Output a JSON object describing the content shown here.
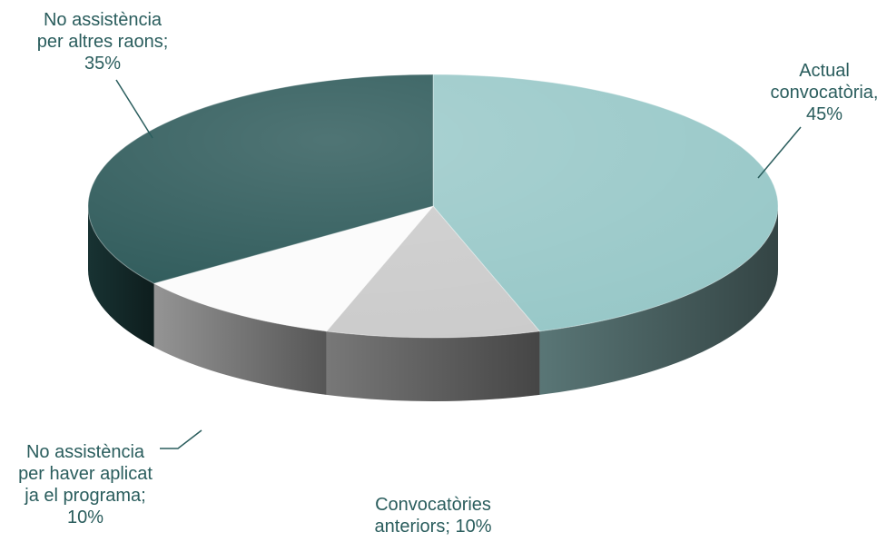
{
  "chart_data": {
    "type": "pie",
    "variant": "3d-pie",
    "title": "",
    "slices": [
      {
        "label": "Actual\nconvocatòria,\n45%",
        "value": 45,
        "color": "#98c8c8"
      },
      {
        "label": "Convocatòries\nanteriors; 10%",
        "value": 10,
        "color": "#cbcbcb"
      },
      {
        "label": "No assistència\nper haver aplicat\nja el programa;\n10%",
        "value": 10,
        "color": "#fbfbfb"
      },
      {
        "label": "No assistència\nper altres raons;\n35%",
        "value": 35,
        "color": "#295656"
      }
    ]
  }
}
